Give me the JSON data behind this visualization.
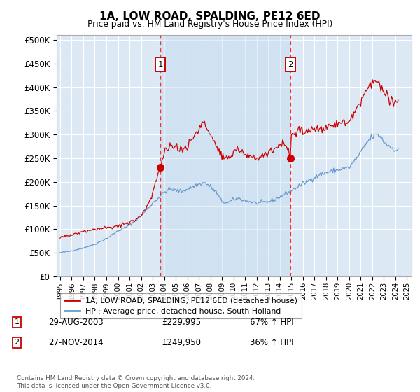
{
  "title": "1A, LOW ROAD, SPALDING, PE12 6ED",
  "subtitle": "Price paid vs. HM Land Registry's House Price Index (HPI)",
  "ylabel_ticks": [
    "£0",
    "£50K",
    "£100K",
    "£150K",
    "£200K",
    "£250K",
    "£300K",
    "£350K",
    "£400K",
    "£450K",
    "£500K"
  ],
  "ytick_values": [
    0,
    50000,
    100000,
    150000,
    200000,
    250000,
    300000,
    350000,
    400000,
    450000,
    500000
  ],
  "ylim": [
    0,
    510000
  ],
  "xlim_start": 1994.7,
  "xlim_end": 2025.4,
  "background_color": "#dce9f5",
  "plot_bg_color": "#dce9f5",
  "shade_color": "#c8dff0",
  "grid_color": "#ffffff",
  "red_line_color": "#cc0000",
  "blue_line_color": "#6699cc",
  "marker_color_red": "#cc0000",
  "marker_color_blue": "#6699cc",
  "sale1_x": 2003.66,
  "sale1_y": 229995,
  "sale2_x": 2014.9,
  "sale2_y": 249950,
  "vline_color": "#ee3333",
  "legend_label1": "1A, LOW ROAD, SPALDING, PE12 6ED (detached house)",
  "legend_label2": "HPI: Average price, detached house, South Holland",
  "table_row1": [
    "1",
    "29-AUG-2003",
    "£229,995",
    "67% ↑ HPI"
  ],
  "table_row2": [
    "2",
    "27-NOV-2014",
    "£249,950",
    "36% ↑ HPI"
  ],
  "footnote": "Contains HM Land Registry data © Crown copyright and database right 2024.\nThis data is licensed under the Open Government Licence v3.0."
}
